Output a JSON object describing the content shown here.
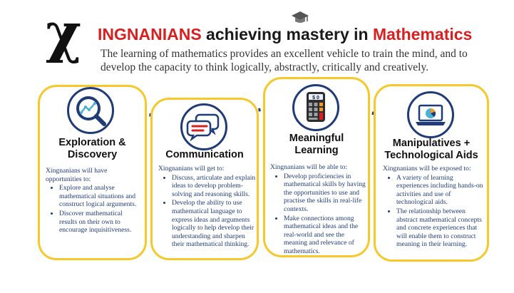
{
  "header": {
    "logo_letter": "χ",
    "title_highlight": "INGNANIANS",
    "title_middle": " achieving mastery in ",
    "title_subject": "Mathematics",
    "subtitle": "The learning of mathematics provides an excellent vehicle to train the mind, and to develop the capacity to think logically, abstractly, critically and creatively."
  },
  "colors": {
    "accent_red": "#d9201f",
    "card_border": "#f6c82a",
    "navy": "#1f3b78",
    "connector": "#1f3b78"
  },
  "cards": [
    {
      "icon": "magnifier-chart-icon",
      "title": "Exploration & Discovery",
      "intro": "Xingnanians will have opportunities to:",
      "points": [
        "Explore and analyse mathematical situations and construct logical arguments.",
        "Discover mathematical results on their own to encourage inquisitiveness."
      ]
    },
    {
      "icon": "speech-bubbles-icon",
      "title": "Communication",
      "intro": "Xingnanians will get to:",
      "points": [
        "Discuss, articulate and explain ideas to develop problem-solving and reasoning skills.",
        "Develop the ability to use mathematical language to express ideas and arguments logically to help develop their understanding and sharpen their mathematical thinking."
      ]
    },
    {
      "icon": "calculator-icon",
      "icon_text": "$ 0",
      "title": "Meaningful Learning",
      "intro": "Xingnanians will be able to:",
      "points": [
        "Develop proficiencies in mathematical skills by having the opportunities to use and practise the skills in real-life contexts.",
        "Make connections among mathematical ideas and the real-world and see the meaning and relevance of mathematics."
      ]
    },
    {
      "icon": "laptop-pie-chart-icon",
      "title": "Manipulatives + Technological Aids",
      "intro": "Xingnanians will be exposed to:",
      "points": [
        "A variety of learning experiences including hands-on activities and use of technological aids.",
        "The relationship between abstract mathematical concepts and concrete experiences that will enable them to construct meaning in their learning."
      ]
    }
  ]
}
